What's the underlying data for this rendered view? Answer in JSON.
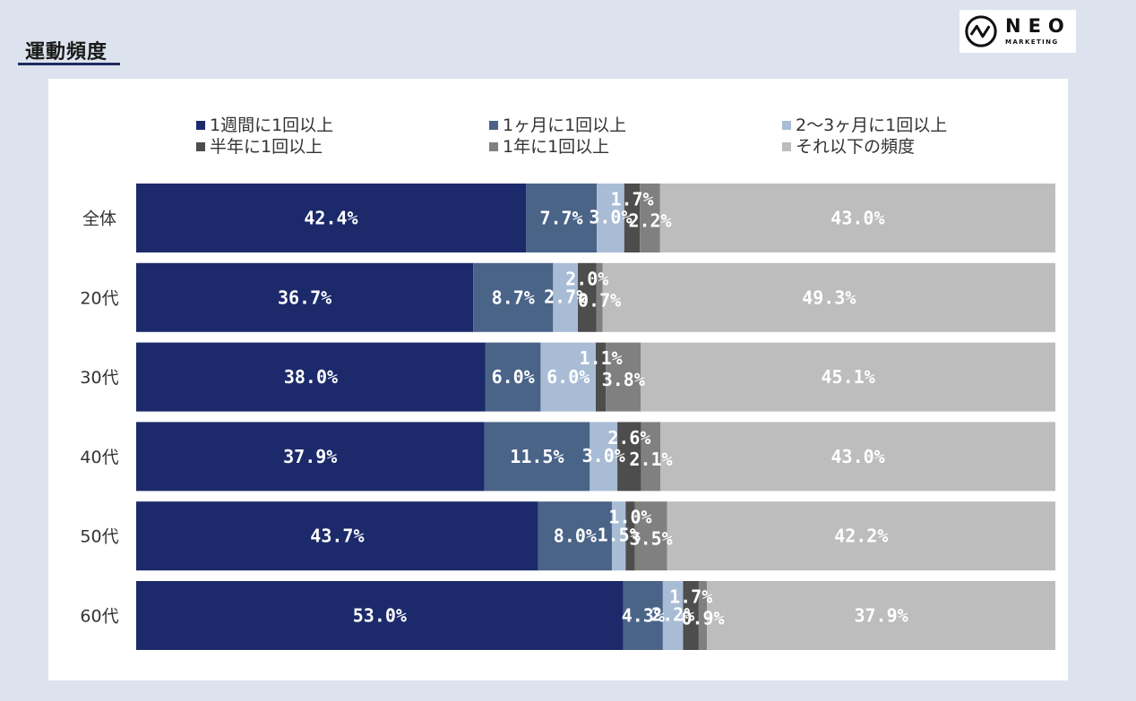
{
  "header": {
    "title": "運動頻度",
    "logo_main": "NEO",
    "logo_sub": "MARKETING"
  },
  "chart_data": {
    "type": "bar",
    "orientation": "horizontal",
    "stacked": true,
    "percent_stacked": true,
    "categories": [
      "全体",
      "20代",
      "30代",
      "40代",
      "50代",
      "60代"
    ],
    "series": [
      {
        "name": "1週間に1回以上",
        "color": "#1c2a6b",
        "values": [
          42.4,
          36.7,
          38.0,
          37.9,
          43.7,
          53.0
        ]
      },
      {
        "name": "1ヶ月に1回以上",
        "color": "#4a6488",
        "values": [
          7.7,
          8.7,
          6.0,
          11.5,
          8.0,
          4.3
        ]
      },
      {
        "name": "2〜3ヶ月に1回以上",
        "color": "#a8bcd6",
        "values": [
          3.0,
          2.7,
          6.0,
          3.0,
          1.5,
          2.2
        ]
      },
      {
        "name": "半年に1回以上",
        "color": "#4d4d4d",
        "values": [
          1.7,
          2.0,
          1.1,
          2.6,
          1.0,
          1.7
        ]
      },
      {
        "name": "1年に1回以上",
        "color": "#808080",
        "values": [
          2.2,
          0.7,
          3.8,
          2.1,
          3.5,
          0.9
        ]
      },
      {
        "name": "それ以下の頻度",
        "color": "#bdbdbd",
        "values": [
          43.0,
          49.3,
          45.1,
          43.0,
          42.2,
          37.9
        ]
      }
    ],
    "value_labels": [
      [
        "42.4%",
        "7.7%",
        "3.0%",
        "1.7%",
        "2.2%",
        "43.0%"
      ],
      [
        "36.7%",
        "8.7%",
        "2.7%",
        "2.0%",
        "0.7%",
        "49.3%"
      ],
      [
        "38.0%",
        "6.0%",
        "6.0%",
        "1.1%",
        "3.8%",
        "45.1%"
      ],
      [
        "37.9%",
        "11.5%",
        "3.0%",
        "2.6%",
        "2.1%",
        "43.0%"
      ],
      [
        "43.7%",
        "8.0%",
        "1.5%",
        "1.0%",
        "3.5%",
        "42.2%"
      ],
      [
        "53.0%",
        "4.3%",
        "2.2%",
        "1.7%",
        "0.9%",
        "37.9%"
      ]
    ],
    "xlim": [
      0,
      100
    ],
    "legend_position": "top",
    "grid": false
  }
}
